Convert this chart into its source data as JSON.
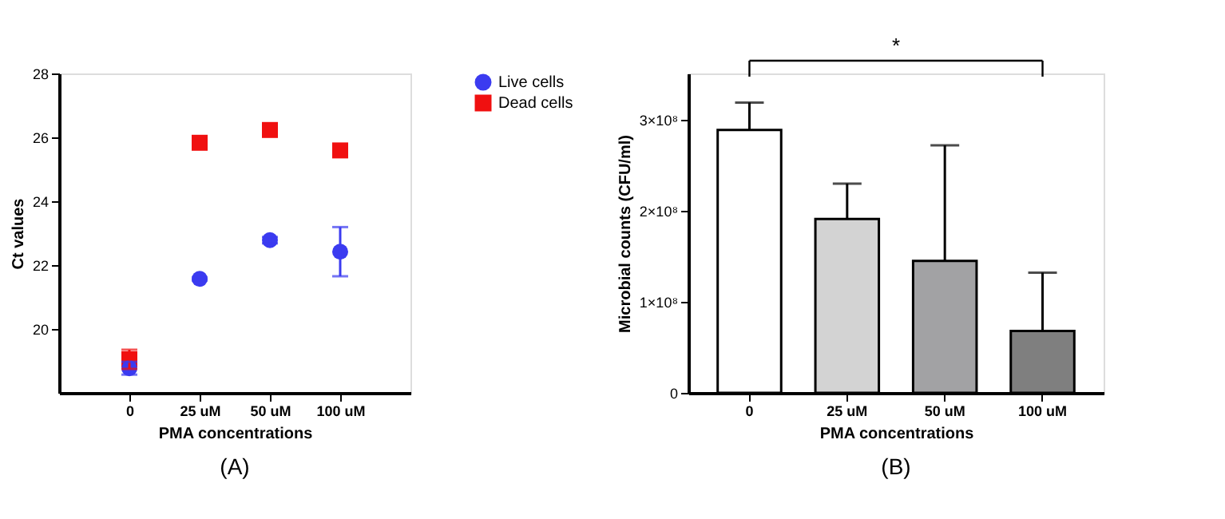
{
  "chart_data": [
    {
      "type": "scatter",
      "xlabel": "PMA concentrations",
      "ylabel": "Ct values",
      "categories": [
        "0",
        "25 uM",
        "50 uM",
        "100 uM"
      ],
      "ylim": [
        18,
        28
      ],
      "yticks": [
        20,
        22,
        24,
        26,
        28
      ],
      "legend": "top right",
      "grid": false,
      "series": [
        {
          "name": "Live cells",
          "color": "#3b3bf0",
          "marker": "circle",
          "values": [
            18.77,
            21.57,
            22.78,
            22.42
          ],
          "errors": [
            0.2,
            0.05,
            0.1,
            0.77
          ]
        },
        {
          "name": "Dead cells",
          "color": "#f01010",
          "marker": "square",
          "values": [
            19.05,
            25.83,
            26.23,
            25.59
          ],
          "errors": [
            0.3,
            null,
            null,
            null
          ]
        }
      ],
      "annotations": [
        "(A)"
      ]
    },
    {
      "type": "bar",
      "xlabel": "PMA concentrations",
      "ylabel": "Microbial counts (CFU/ml)",
      "categories": [
        "0",
        "25 uM",
        "50 uM",
        "100 uM"
      ],
      "values": [
        289000000,
        191000000,
        145000000,
        68000000
      ],
      "colors": [
        "#ffffff",
        "#d3d3d3",
        "#a2a2a4",
        "#7f7f7f"
      ],
      "errors": [
        [
          289000000,
          319000000
        ],
        [
          191000000,
          230000000
        ],
        [
          145000000,
          272000000
        ],
        [
          68000000,
          132000000
        ]
      ],
      "ylim": [
        0,
        351000000
      ],
      "yticks": [
        0,
        {
          "value": 100000000,
          "label": "1×10⁸"
        },
        {
          "value": 200000000,
          "label": "2×10⁸"
        },
        {
          "value": 300000000,
          "label": "3×10⁸"
        }
      ],
      "grid": false,
      "annotations": [
        "*",
        "(B)"
      ]
    }
  ]
}
